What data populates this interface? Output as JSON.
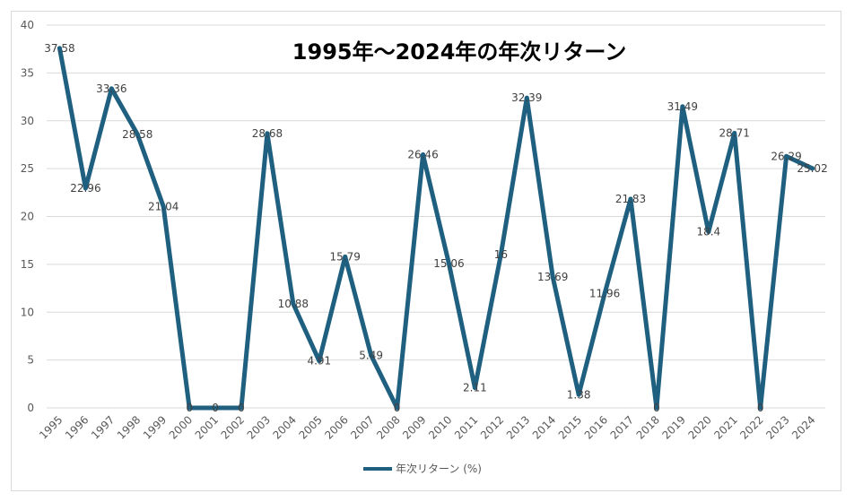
{
  "chart_data": {
    "type": "line",
    "title": "1995年～2024年の年次リターン",
    "xlabel": "",
    "ylabel": "",
    "ylim": [
      0,
      40
    ],
    "yticks": [
      0,
      5,
      10,
      15,
      20,
      25,
      30,
      35,
      40
    ],
    "grid": true,
    "legend_position": "bottom",
    "line_color": "#1f5f7f",
    "categories": [
      "1995",
      "1996",
      "1997",
      "1998",
      "1999",
      "2000",
      "2001",
      "2002",
      "2003",
      "2004",
      "2005",
      "2006",
      "2007",
      "2008",
      "2009",
      "2010",
      "2011",
      "2012",
      "2013",
      "2014",
      "2015",
      "2016",
      "2017",
      "2018",
      "2019",
      "2020",
      "2021",
      "2022",
      "2023",
      "2024"
    ],
    "series": [
      {
        "name": "年次リターン (%)",
        "values": [
          37.58,
          22.96,
          33.36,
          28.58,
          21.04,
          0,
          0,
          0,
          28.68,
          10.88,
          4.91,
          15.79,
          5.49,
          0,
          26.46,
          15.06,
          2.11,
          16,
          32.39,
          13.69,
          1.38,
          11.96,
          21.83,
          0,
          31.49,
          18.4,
          28.71,
          0,
          26.29,
          25.02
        ],
        "labels": [
          "37.58",
          "22.96",
          "33.36",
          "28.58",
          "21.04",
          "0",
          "0",
          "0",
          "28.68",
          "10.88",
          "4.91",
          "15.79",
          "5.49",
          "0",
          "26.46",
          "15.06",
          "2.11",
          "16",
          "32.39",
          "13.69",
          "1.38",
          "11.96",
          "21.83",
          "0",
          "31.49",
          "18.4",
          "28.71",
          "0",
          "26.29",
          "25.02"
        ]
      }
    ]
  }
}
